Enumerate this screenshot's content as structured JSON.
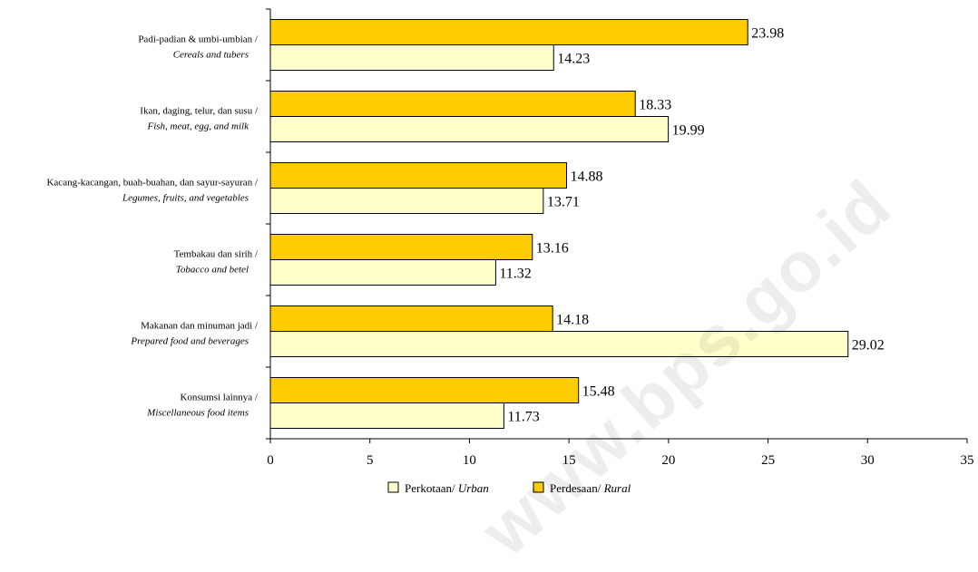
{
  "watermark_text": "www.bps.go.id",
  "chart_data": {
    "type": "bar",
    "orientation": "horizontal",
    "categories": [
      {
        "line1": "Padi-padian & umbi-umbian /",
        "line2": "Cereals and tubers"
      },
      {
        "line1": "Ikan, daging, telur, dan susu /",
        "line2": "Fish, meat, egg, and milk"
      },
      {
        "line1": "Kacang-kacangan, buah-buahan, dan sayur-sayuran /",
        "line2": "Legumes, fruits, and vegetables"
      },
      {
        "line1": "Tembakau dan sirih /",
        "line2": "Tobacco and betel"
      },
      {
        "line1": "Makanan dan minuman jadi /",
        "line2": "Prepared food and beverages"
      },
      {
        "line1": "Konsumsi lainnya /",
        "line2": "Miscellaneous food items"
      }
    ],
    "series": [
      {
        "key": "rural",
        "legend_prefix": "Perdesaan/ ",
        "legend_italic": "Rural",
        "color": "#ffcc00",
        "values": [
          23.98,
          18.33,
          14.88,
          13.16,
          14.18,
          15.48
        ]
      },
      {
        "key": "urban",
        "legend_prefix": "Perkotaan/ ",
        "legend_italic": "Urban",
        "color": "#ffffcc",
        "values": [
          14.23,
          19.99,
          13.71,
          11.32,
          29.02,
          11.73
        ]
      }
    ],
    "xlim": [
      0,
      35
    ],
    "xticks": [
      0,
      5,
      10,
      15,
      20,
      25,
      30,
      35
    ],
    "grid": false,
    "legend_position": "bottom"
  }
}
